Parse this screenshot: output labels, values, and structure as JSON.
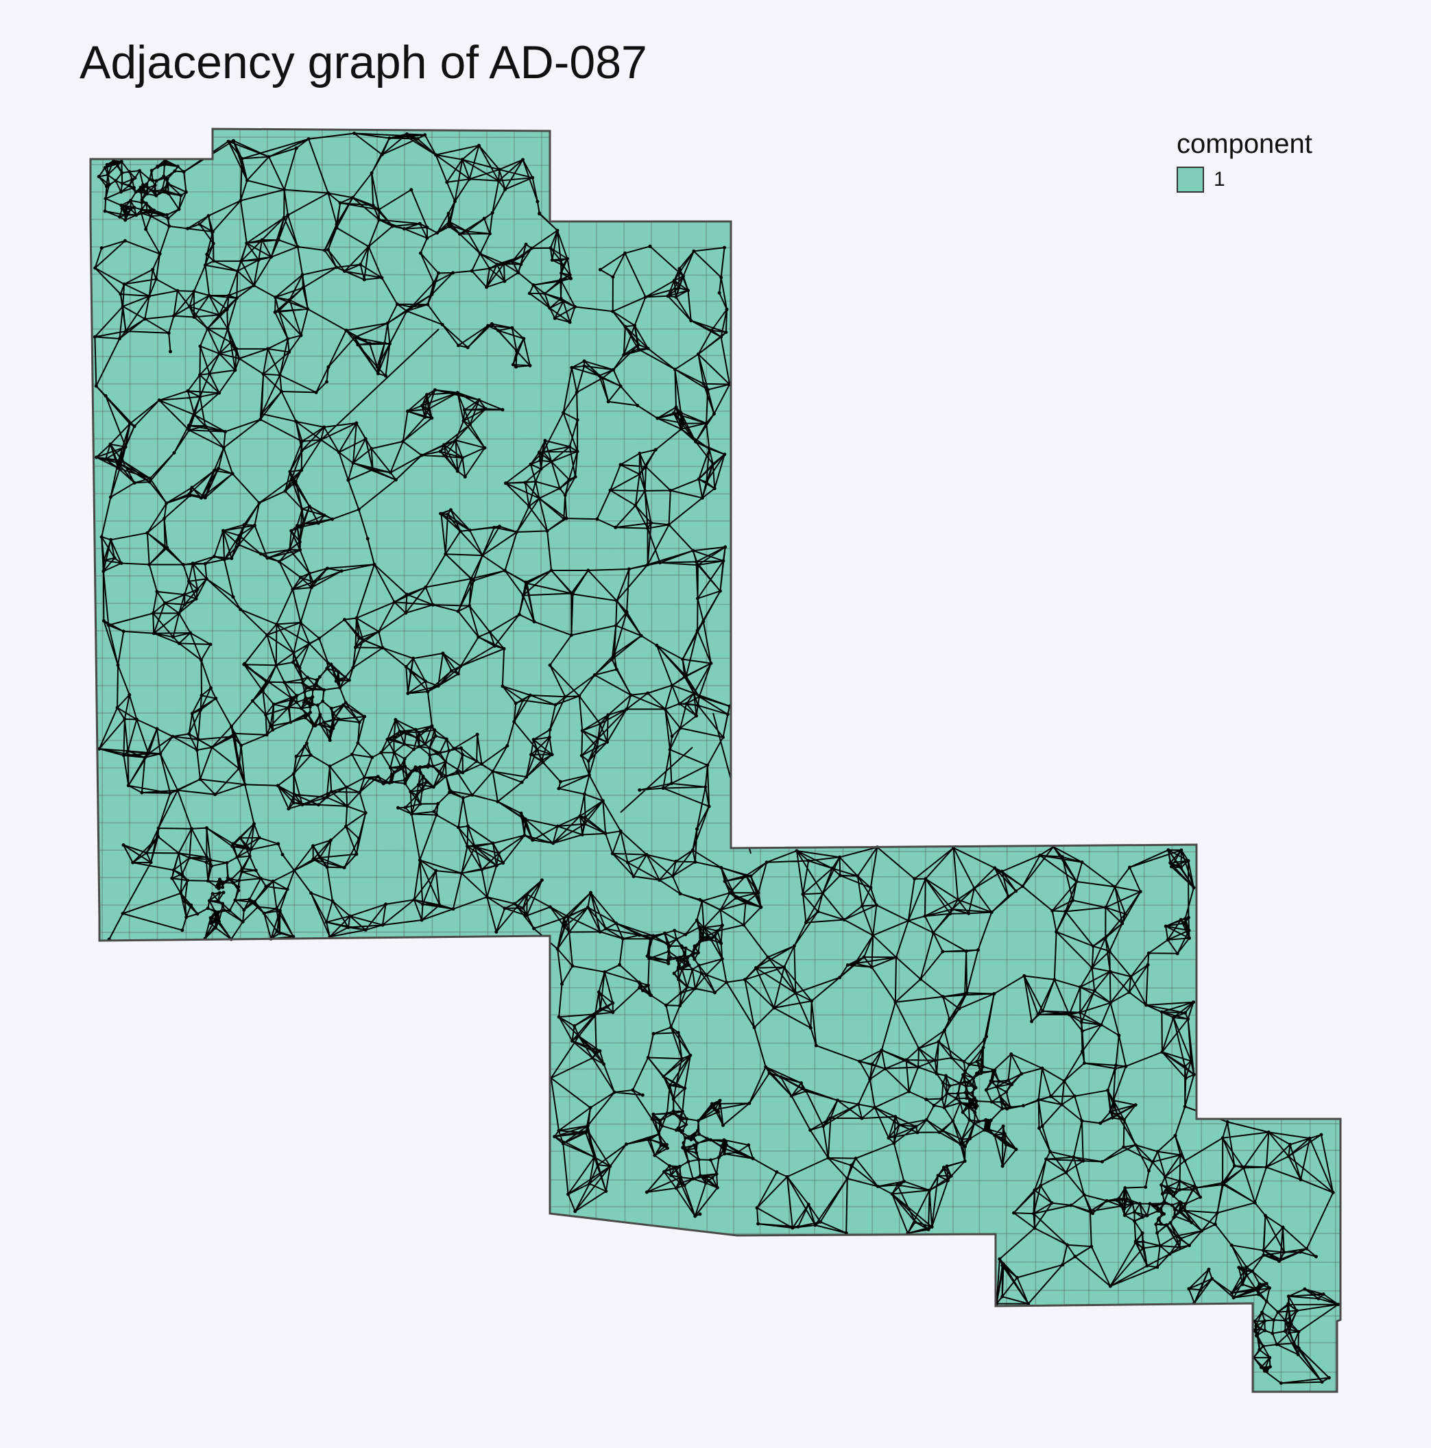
{
  "title": "Adjacency graph of AD-087",
  "legend": {
    "title": "component",
    "items": [
      {
        "label": "1",
        "color": "#7fcdbb"
      }
    ]
  },
  "colors": {
    "background": "#f5f6fd",
    "region_fill": "#7fcdbb",
    "region_stroke": "#4a4a4a",
    "edge": "#000000",
    "node": "#000000"
  }
}
